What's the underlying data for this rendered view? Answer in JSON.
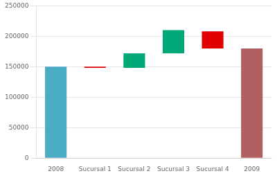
{
  "chart_data": {
    "type": "bar",
    "categories": [
      "2008",
      "Sucursal 1",
      "Sucursal 2",
      "Sucursal 3",
      "Sucursal 4",
      "2009"
    ],
    "values": [
      150000,
      2000,
      24000,
      38000,
      28000,
      180000
    ],
    "bottoms": [
      0,
      148000,
      148000,
      172000,
      180000,
      0
    ],
    "colors": [
      "#4bacc6",
      "#e00000",
      "#00a878",
      "#00a878",
      "#e00000",
      "#b06060"
    ],
    "ylim": [
      0,
      250000
    ],
    "yticks": [
      0,
      50000,
      100000,
      150000,
      200000,
      250000
    ],
    "grid": true
  }
}
